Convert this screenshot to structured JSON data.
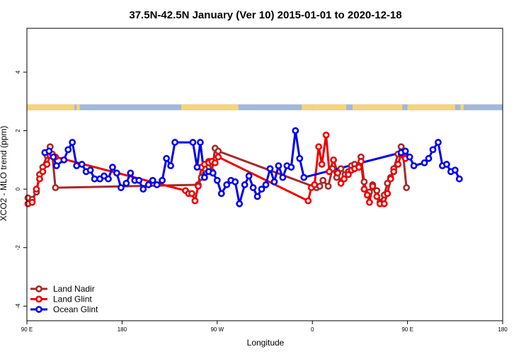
{
  "chart_data": {
    "type": "line",
    "title": "37.5N-42.5N January (Ver 10)   2015-01-01 to 2020-12-18",
    "xlabel": "Longitude",
    "ylabel": "XCO2 - MLO trend (ppm)",
    "xlim": [
      90,
      540
    ],
    "ylim": [
      -4.5,
      5.5
    ],
    "x_ticks": [
      {
        "value": 90,
        "label": "90 E"
      },
      {
        "value": 180,
        "label": "180"
      },
      {
        "value": 270,
        "label": "90 W"
      },
      {
        "value": 360,
        "label": "0"
      },
      {
        "value": 450,
        "label": "90 E"
      },
      {
        "value": 540,
        "label": "180"
      }
    ],
    "y_ticks": [
      {
        "value": -4,
        "label": "-4"
      },
      {
        "value": -2,
        "label": "-2"
      },
      {
        "value": 0,
        "label": "0"
      },
      {
        "value": 2,
        "label": "2"
      },
      {
        "value": 4,
        "label": "4"
      }
    ],
    "land_mask": {
      "y_range": [
        2.7,
        2.9
      ],
      "ocean_color": "#a2b8d8",
      "land_color": "#f5d57a",
      "land_segments": [
        [
          90,
          135
        ],
        [
          137,
          140
        ],
        [
          236,
          290
        ],
        [
          350,
          360
        ],
        [
          360,
          392
        ],
        [
          398,
          445
        ],
        [
          450,
          495
        ],
        [
          500,
          503
        ]
      ]
    },
    "legend": {
      "position": "bottom-left",
      "entries": [
        "Land Nadir",
        "Land Glint",
        "Ocean Glint"
      ]
    },
    "series": [
      {
        "name": "Land Nadir",
        "color": "#a52a2a",
        "points": [
          [
            91,
            -0.3
          ],
          [
            95,
            -0.35
          ],
          [
            99,
            -0.1
          ],
          [
            102,
            0.5
          ],
          [
            105,
            0.75
          ],
          [
            109,
            1.15
          ],
          [
            112,
            1.45
          ],
          [
            114,
            1.2
          ],
          [
            117,
            0.05
          ],
          [
            252,
            0.15
          ],
          [
            255,
            0.4
          ],
          [
            258,
            0.7
          ],
          [
            262,
            0.95
          ],
          [
            265,
            0.6
          ],
          [
            268,
            1.4
          ],
          [
            271,
            1.3
          ],
          [
            364,
            0.05
          ],
          [
            367,
            0.1
          ],
          [
            370,
            0.3
          ],
          [
            375,
            0.1
          ],
          [
            379,
            0.7
          ],
          [
            383,
            0.4
          ],
          [
            387,
            0.7
          ],
          [
            391,
            0.5
          ],
          [
            394,
            0.6
          ],
          [
            397,
            0.8
          ],
          [
            400,
            0.85
          ],
          [
            404,
            0.8
          ],
          [
            406,
            1.1
          ],
          [
            409,
            0.25
          ],
          [
            412,
            -0.2
          ],
          [
            414,
            -0.1
          ],
          [
            417,
            0.15
          ],
          [
            421,
            -0.05
          ],
          [
            424,
            -0.45
          ],
          [
            428,
            -0.2
          ],
          [
            431,
            0.2
          ],
          [
            434,
            0.4
          ],
          [
            437,
            0.7
          ],
          [
            441,
            1.2
          ],
          [
            444,
            1.45
          ],
          [
            446,
            1.15
          ],
          [
            449,
            0.05
          ]
        ]
      },
      {
        "name": "Land Glint",
        "color": "#ee0000",
        "points": [
          [
            91,
            -0.5
          ],
          [
            95,
            -0.45
          ],
          [
            99,
            0.0
          ],
          [
            102,
            0.35
          ],
          [
            105,
            0.6
          ],
          [
            109,
            0.85
          ],
          [
            112,
            1.15
          ],
          [
            114,
            1.2
          ],
          [
            117,
            1.1
          ],
          [
            240,
            -0.05
          ],
          [
            243,
            -0.15
          ],
          [
            246,
            -0.15
          ],
          [
            249,
            -0.4
          ],
          [
            252,
            0.1
          ],
          [
            255,
            0.75
          ],
          [
            258,
            0.85
          ],
          [
            262,
            0.9
          ],
          [
            265,
            0.95
          ],
          [
            268,
            0.9
          ],
          [
            271,
            1.1
          ],
          [
            356,
            -0.4
          ],
          [
            359,
            0.05
          ],
          [
            362,
            0.15
          ],
          [
            366,
            1.45
          ],
          [
            369,
            0.85
          ],
          [
            373,
            1.85
          ],
          [
            376,
            0.6
          ],
          [
            380,
            1.0
          ],
          [
            384,
            0.55
          ],
          [
            387,
            0.2
          ],
          [
            390,
            0.35
          ],
          [
            394,
            0.5
          ],
          [
            397,
            0.65
          ],
          [
            400,
            0.7
          ],
          [
            404,
            0.75
          ],
          [
            406,
            0.95
          ],
          [
            409,
            0.0
          ],
          [
            412,
            -0.2
          ],
          [
            414,
            -0.45
          ],
          [
            417,
            0.1
          ],
          [
            421,
            -0.25
          ],
          [
            424,
            -0.5
          ],
          [
            428,
            -0.5
          ],
          [
            431,
            -0.15
          ],
          [
            434,
            0.35
          ],
          [
            437,
            0.6
          ],
          [
            441,
            0.85
          ],
          [
            444,
            1.2
          ],
          [
            448,
            1.05
          ]
        ]
      },
      {
        "name": "Ocean Glint",
        "color": "#0000ee",
        "points": [
          [
            107,
            1.25
          ],
          [
            111,
            1.3
          ],
          [
            115,
            1.1
          ],
          [
            118,
            0.8
          ],
          [
            125,
            1.0
          ],
          [
            129,
            1.35
          ],
          [
            133,
            1.6
          ],
          [
            137,
            0.8
          ],
          [
            142,
            0.85
          ],
          [
            146,
            0.6
          ],
          [
            150,
            0.65
          ],
          [
            154,
            0.35
          ],
          [
            159,
            0.35
          ],
          [
            163,
            0.45
          ],
          [
            167,
            0.35
          ],
          [
            171,
            0.75
          ],
          [
            175,
            0.55
          ],
          [
            179,
            0.05
          ],
          [
            184,
            0.2
          ],
          [
            188,
            0.55
          ],
          [
            192,
            0.3
          ],
          [
            196,
            0.3
          ],
          [
            200,
            0.0
          ],
          [
            205,
            0.15
          ],
          [
            209,
            0.3
          ],
          [
            213,
            0.15
          ],
          [
            218,
            0.3
          ],
          [
            222,
            1.05
          ],
          [
            226,
            0.8
          ],
          [
            230,
            1.6
          ],
          [
            247,
            1.6
          ],
          [
            251,
            0.75
          ],
          [
            254,
            1.6
          ],
          [
            258,
            0.4
          ],
          [
            262,
            0.6
          ],
          [
            266,
            0.55
          ],
          [
            270,
            0.3
          ],
          [
            274,
            -0.15
          ],
          [
            279,
            0.15
          ],
          [
            283,
            0.3
          ],
          [
            287,
            0.25
          ],
          [
            291,
            -0.5
          ],
          [
            296,
            0.15
          ],
          [
            300,
            0.45
          ],
          [
            304,
            0.05
          ],
          [
            308,
            -0.25
          ],
          [
            312,
            0.0
          ],
          [
            316,
            0.15
          ],
          [
            320,
            0.7
          ],
          [
            324,
            0.25
          ],
          [
            328,
            0.8
          ],
          [
            332,
            0.4
          ],
          [
            336,
            0.8
          ],
          [
            340,
            0.75
          ],
          [
            344,
            2.0
          ],
          [
            348,
            1.05
          ],
          [
            352,
            0.4
          ],
          [
            444,
            1.25
          ],
          [
            448,
            1.3
          ],
          [
            452,
            1.1
          ],
          [
            456,
            0.8
          ],
          [
            466,
            0.9
          ],
          [
            470,
            1.05
          ],
          [
            474,
            1.35
          ],
          [
            479,
            1.6
          ],
          [
            483,
            0.8
          ],
          [
            487,
            0.85
          ],
          [
            491,
            0.6
          ],
          [
            495,
            0.65
          ],
          [
            499,
            0.35
          ]
        ]
      }
    ]
  }
}
